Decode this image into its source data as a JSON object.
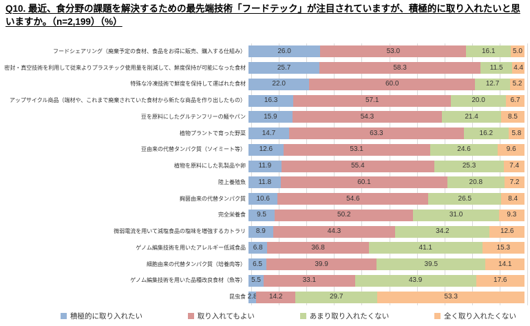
{
  "title": "Q10. 最近、食分野の課題を解決するための最先端技術「フードテック」が注目されていますが、積極的に取り入れたいと思いますか。（n=2,199）（%）",
  "colors": {
    "series_blue": "#95B3D7",
    "series_red": "#D99694",
    "series_green": "#C3D69B",
    "series_orange": "#FAC08F",
    "gridline": "#D9D9D9",
    "label_text": "#333333",
    "title_text": "#000000"
  },
  "chart_data": {
    "type": "bar",
    "orientation": "horizontal",
    "stacked": true,
    "xlim": [
      0,
      100
    ],
    "grid": true,
    "grid_interval": 10,
    "legend_position": "bottom",
    "value_label_decimals": 1,
    "categories": [
      "フードシェアリング（廃棄予定の食材、食品をお得に販売、購入する仕組み）",
      "密封・真空技術を利用して従来よりプラスチック使用量を削減して、鮮度保持が可能になった食材",
      "特殊な冷凍技術で鮮度を保持して運ばれた食材",
      "アップサイクル商品（端材や、これまで廃棄されていた食材から新たな商品を作り出したもの）",
      "豆を原料にしたグルテンフリーの麺やパン",
      "植物プラントで育った野菜",
      "豆由来の代替タンパク質（ソイミート等）",
      "植物を原料にした乳製品や卵",
      "陸上養殖魚",
      "麹菌由来の代替タンパク質",
      "完全栄養食",
      "微弱電流を用いて減塩食品の塩味を増強するカトラリ",
      "ゲノム編集技術を用いたアレルギー低減食品",
      "細胞由来の代替タンパク質（培養肉等）",
      "ゲノム編集技術を用いた品種改良食材（魚等）",
      "昆虫食"
    ],
    "series": [
      {
        "name": "積極的に取り入れたい",
        "color": "#95B3D7",
        "values": [
          26.0,
          25.7,
          22.0,
          16.3,
          15.9,
          14.7,
          12.6,
          11.9,
          11.8,
          10.6,
          9.5,
          8.9,
          6.8,
          6.5,
          5.5,
          2.8
        ]
      },
      {
        "name": "取り入れてもよい",
        "color": "#D99694",
        "values": [
          53.0,
          58.3,
          60.0,
          57.1,
          54.3,
          63.3,
          53.1,
          55.4,
          60.1,
          54.6,
          50.2,
          44.3,
          36.8,
          39.9,
          33.1,
          14.2
        ]
      },
      {
        "name": "あまり取り入れたくない",
        "color": "#C3D69B",
        "values": [
          16.1,
          11.5,
          12.7,
          20.0,
          21.4,
          16.2,
          24.6,
          25.3,
          20.8,
          26.5,
          31.0,
          34.2,
          41.1,
          39.5,
          43.9,
          29.7
        ]
      },
      {
        "name": "全く取り入れたくない",
        "color": "#FAC08F",
        "values": [
          5.0,
          4.4,
          5.2,
          6.7,
          8.5,
          5.8,
          9.6,
          7.4,
          7.2,
          8.4,
          9.3,
          12.6,
          15.3,
          14.1,
          17.6,
          53.3
        ]
      }
    ]
  },
  "legend": {
    "items": [
      "積極的に取り入れたい",
      "取り入れてもよい",
      "あまり取り入れたくない",
      "全く取り入れたくない"
    ]
  }
}
